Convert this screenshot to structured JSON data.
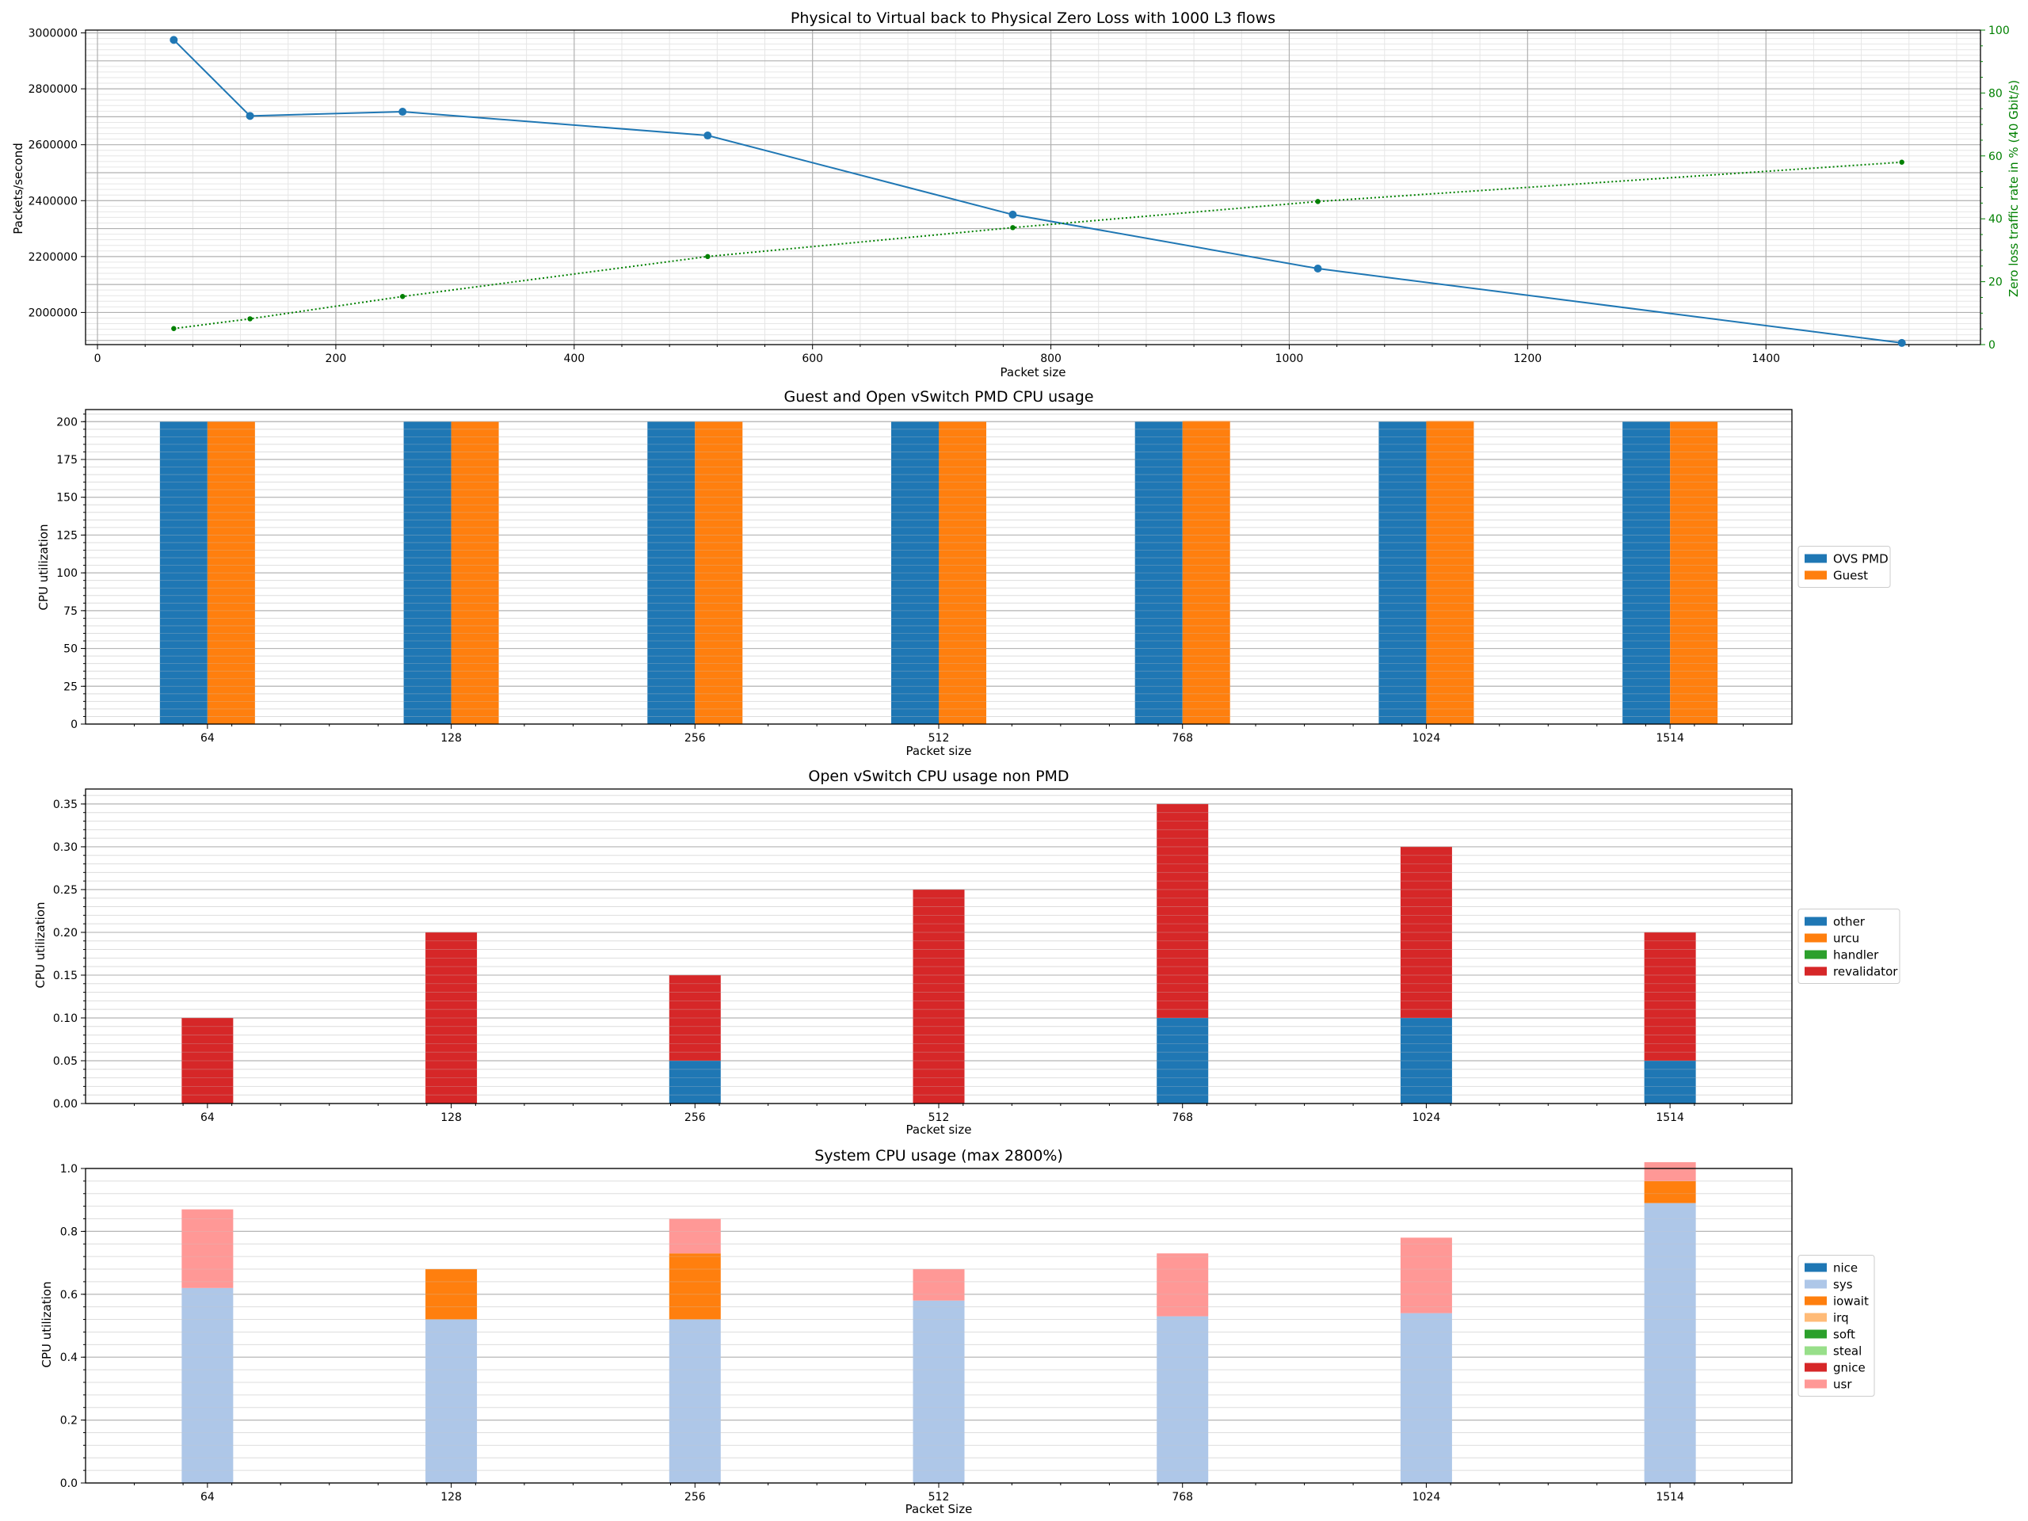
{
  "chart_data": [
    {
      "type": "line",
      "title": "Physical to Virtual back to Physical Zero Loss with 1000 L3 flows",
      "xlabel": "Packet size",
      "ylabel": "Packets/second",
      "ylabel_right": "Zero loss traffic rate in % (40 Gbit/s)",
      "xlim": [
        -10,
        1580
      ],
      "ylim": [
        1885000,
        3010000
      ],
      "ylim_right": [
        0,
        100
      ],
      "xticks": [
        0,
        200,
        400,
        600,
        800,
        1000,
        1200,
        1400
      ],
      "yticks": [
        2000000,
        2200000,
        2400000,
        2600000,
        2800000,
        3000000
      ],
      "yticks_right": [
        0,
        20,
        40,
        60,
        80,
        100
      ],
      "grid": true,
      "series": [
        {
          "axis": "left",
          "color": "#1f77b4",
          "style": "solid",
          "x": [
            64,
            128,
            256,
            512,
            768,
            1024,
            1514
          ],
          "y": [
            2975000,
            2703000,
            2718000,
            2633000,
            2350000,
            2157000,
            1891000
          ]
        },
        {
          "axis": "right",
          "color": "#008000",
          "style": "dotted",
          "x": [
            64,
            128,
            256,
            512,
            768,
            1024,
            1514
          ],
          "y": [
            5.1,
            8.2,
            15.3,
            28.0,
            37.2,
            45.5,
            58.0
          ]
        }
      ]
    },
    {
      "type": "bar",
      "title": "Guest and Open vSwitch PMD CPU usage",
      "xlabel": "Packet size",
      "ylabel": "CPU utilization",
      "categories": [
        "64",
        "128",
        "256",
        "512",
        "768",
        "1024",
        "1514"
      ],
      "ylim": [
        0,
        208
      ],
      "yticks": [
        0,
        25,
        50,
        75,
        100,
        125,
        150,
        175,
        200
      ],
      "legend_position": "right",
      "series": [
        {
          "name": "OVS PMD",
          "color": "#1f77b4",
          "values": [
            200,
            200,
            200,
            200,
            200,
            200,
            200
          ]
        },
        {
          "name": "Guest",
          "color": "#ff7f0e",
          "values": [
            200,
            200,
            200,
            200,
            200.4,
            200.4,
            200
          ]
        }
      ]
    },
    {
      "type": "bar",
      "stacked": true,
      "title": "Open vSwitch CPU usage non PMD",
      "xlabel": "Packet size",
      "ylabel": "CPU utilization",
      "categories": [
        "64",
        "128",
        "256",
        "512",
        "768",
        "1024",
        "1514"
      ],
      "ylim": [
        0,
        0.3675
      ],
      "yticks": [
        0.0,
        0.05,
        0.1,
        0.15,
        0.2,
        0.25,
        0.3,
        0.35
      ],
      "legend_position": "right",
      "series": [
        {
          "name": "other",
          "color": "#1f77b4",
          "values": [
            0,
            0,
            0.05,
            0,
            0.1,
            0.1,
            0.05
          ]
        },
        {
          "name": "urcu",
          "color": "#ff7f0e",
          "values": [
            0,
            0,
            0,
            0,
            0,
            0,
            0
          ]
        },
        {
          "name": "handler",
          "color": "#2ca02c",
          "values": [
            0,
            0,
            0,
            0,
            0,
            0,
            0
          ]
        },
        {
          "name": "revalidator",
          "color": "#d62728",
          "values": [
            0.1,
            0.2,
            0.1,
            0.25,
            0.25,
            0.2,
            0.15
          ]
        }
      ]
    },
    {
      "type": "bar",
      "stacked": true,
      "title": "System CPU usage (max 2800%)",
      "xlabel": "Packet Size",
      "ylabel": "CPU utilization",
      "categories": [
        "64",
        "128",
        "256",
        "512",
        "768",
        "1024",
        "1514"
      ],
      "ylim": [
        0,
        1.0
      ],
      "yticks": [
        0.0,
        0.2,
        0.4,
        0.6,
        0.8,
        1.0
      ],
      "legend_position": "right",
      "series": [
        {
          "name": "nice",
          "color": "#1f77b4",
          "values": [
            0,
            0,
            0,
            0,
            0,
            0,
            0
          ]
        },
        {
          "name": "sys",
          "color": "#aec7e8",
          "values": [
            0.62,
            0.52,
            0.52,
            0.58,
            0.53,
            0.54,
            0.89
          ]
        },
        {
          "name": "iowait",
          "color": "#ff7f0e",
          "values": [
            0,
            0.16,
            0.21,
            0,
            0,
            0,
            0.07
          ]
        },
        {
          "name": "irq",
          "color": "#ffbb78",
          "values": [
            0,
            0,
            0,
            0,
            0,
            0,
            0
          ]
        },
        {
          "name": "soft",
          "color": "#2ca02c",
          "values": [
            0,
            0,
            0,
            0,
            0,
            0,
            0
          ]
        },
        {
          "name": "steal",
          "color": "#98df8a",
          "values": [
            0,
            0,
            0,
            0,
            0,
            0,
            0
          ]
        },
        {
          "name": "gnice",
          "color": "#d62728",
          "values": [
            0,
            0,
            0,
            0,
            0,
            0,
            0
          ]
        },
        {
          "name": "usr",
          "color": "#ff9896",
          "values": [
            0.25,
            0,
            0.11,
            0.1,
            0.2,
            0.24,
            0.06
          ]
        }
      ]
    }
  ]
}
